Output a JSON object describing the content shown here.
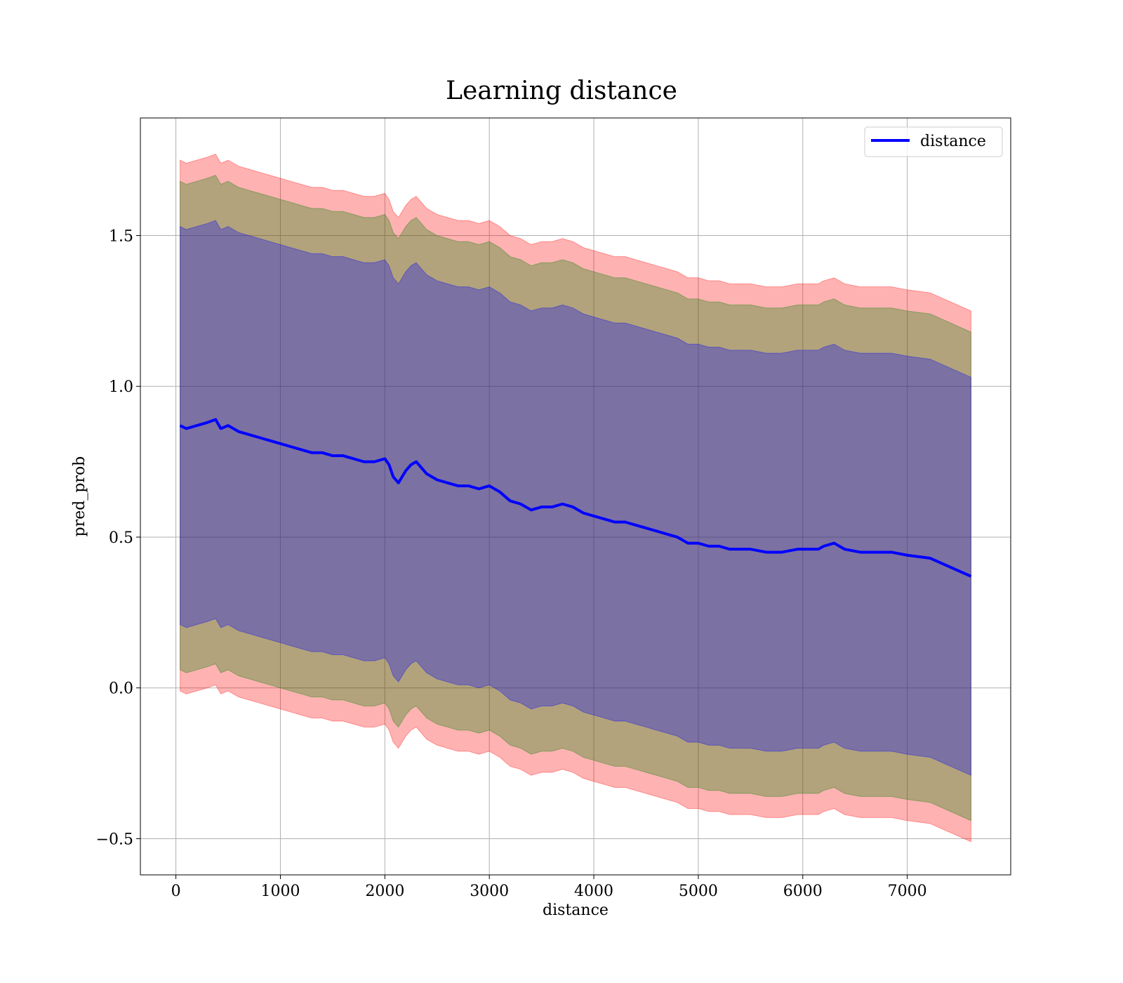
{
  "chart_data": {
    "type": "area",
    "title": "Learning distance",
    "xlabel": "distance",
    "ylabel": "pred_prob",
    "xlim": [
      -340,
      7990
    ],
    "ylim": [
      -0.62,
      1.89
    ],
    "xticks": [
      0,
      1000,
      2000,
      3000,
      4000,
      5000,
      6000,
      7000
    ],
    "xtick_labels": [
      "0",
      "1000",
      "2000",
      "3000",
      "4000",
      "5000",
      "6000",
      "7000"
    ],
    "yticks": [
      -0.5,
      0.0,
      0.5,
      1.0,
      1.5
    ],
    "ytick_labels": [
      "−0.5",
      "0.0",
      "0.5",
      "1.0",
      "1.5"
    ],
    "grid": true,
    "legend_position": "top-right",
    "series": [
      {
        "name": "distance",
        "color": "#0000ff",
        "x": [
          40,
          100,
          200,
          300,
          380,
          430,
          500,
          600,
          700,
          800,
          900,
          1000,
          1100,
          1200,
          1300,
          1400,
          1500,
          1600,
          1700,
          1800,
          1900,
          2000,
          2040,
          2080,
          2130,
          2200,
          2250,
          2300,
          2400,
          2500,
          2600,
          2700,
          2800,
          2900,
          3000,
          3100,
          3200,
          3300,
          3400,
          3500,
          3600,
          3700,
          3800,
          3900,
          4000,
          4100,
          4200,
          4300,
          4400,
          4500,
          4600,
          4700,
          4800,
          4900,
          5000,
          5100,
          5200,
          5300,
          5400,
          5500,
          5650,
          5800,
          5950,
          6050,
          6150,
          6200,
          6300,
          6400,
          6550,
          6700,
          6850,
          7000,
          7220,
          7610
        ],
        "y": [
          0.87,
          0.86,
          0.87,
          0.88,
          0.89,
          0.86,
          0.87,
          0.85,
          0.84,
          0.83,
          0.82,
          0.81,
          0.8,
          0.79,
          0.78,
          0.78,
          0.77,
          0.77,
          0.76,
          0.75,
          0.75,
          0.76,
          0.74,
          0.7,
          0.68,
          0.72,
          0.74,
          0.75,
          0.71,
          0.69,
          0.68,
          0.67,
          0.67,
          0.66,
          0.67,
          0.65,
          0.62,
          0.61,
          0.59,
          0.6,
          0.6,
          0.61,
          0.6,
          0.58,
          0.57,
          0.56,
          0.55,
          0.55,
          0.54,
          0.53,
          0.52,
          0.51,
          0.5,
          0.48,
          0.48,
          0.47,
          0.47,
          0.46,
          0.46,
          0.46,
          0.45,
          0.45,
          0.46,
          0.46,
          0.46,
          0.47,
          0.48,
          0.46,
          0.45,
          0.45,
          0.45,
          0.44,
          0.43,
          0.37
        ]
      }
    ],
    "bands": [
      {
        "name": "",
        "color": "#ff0000",
        "opacity": 0.3,
        "half_width": 0.88
      },
      {
        "name": "",
        "color": "#008000",
        "opacity": 0.3,
        "half_width": 0.81
      },
      {
        "name": "",
        "color": "#0000ff",
        "opacity": 0.3,
        "half_width": 0.66
      }
    ]
  }
}
